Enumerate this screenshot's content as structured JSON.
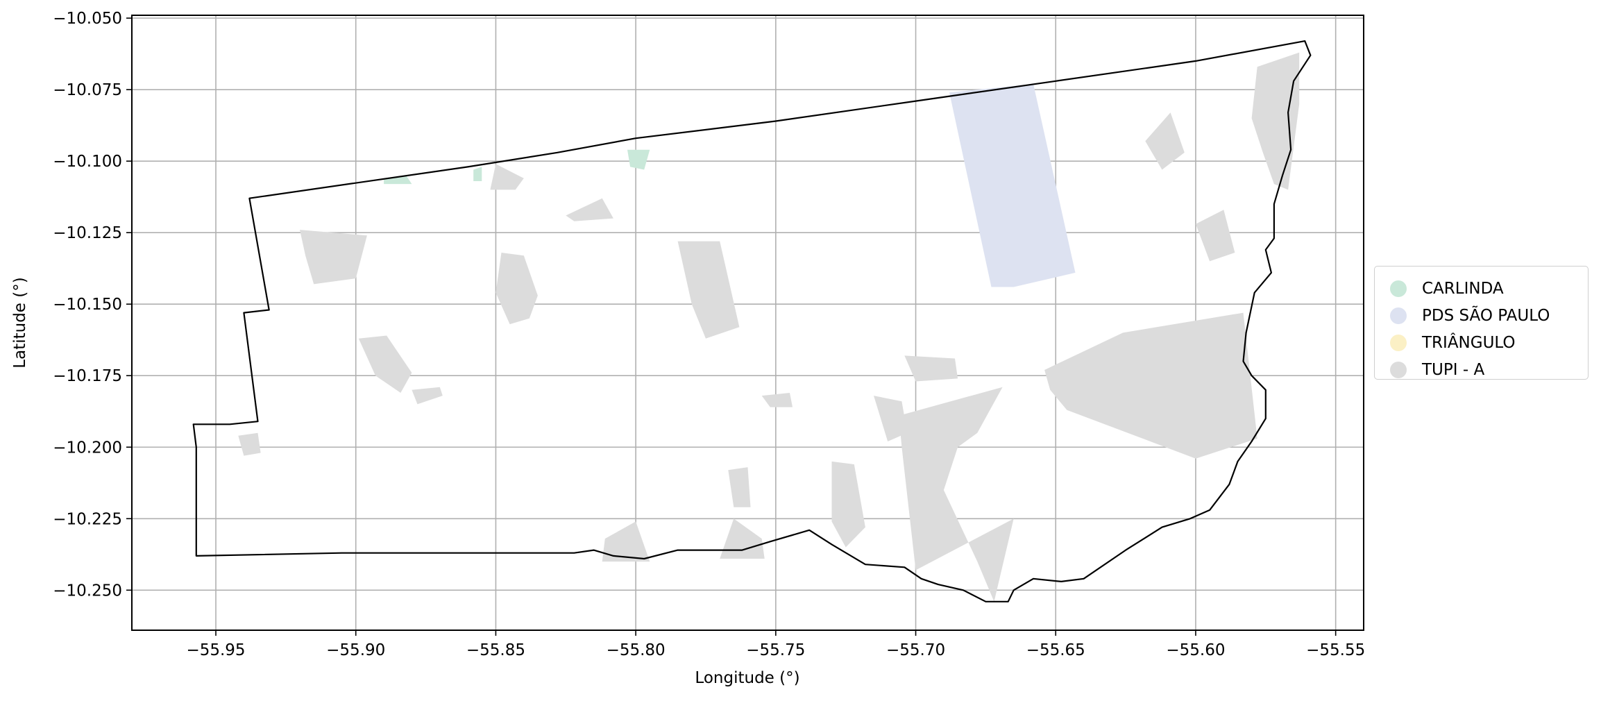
{
  "chart_data": {
    "type": "map",
    "xlabel": "Longitude (°)",
    "ylabel": "Latitude (°)",
    "xlim": [
      -55.98,
      -55.54
    ],
    "ylim": [
      -10.264,
      -10.049
    ],
    "grid": true,
    "legend_position": "right",
    "x_ticks": [
      -55.95,
      -55.9,
      -55.85,
      -55.8,
      -55.75,
      -55.7,
      -55.65,
      -55.6,
      -55.55
    ],
    "x_tick_labels": [
      "−55.95",
      "−55.90",
      "−55.85",
      "−55.80",
      "−55.75",
      "−55.70",
      "−55.65",
      "−55.60",
      "−55.55"
    ],
    "y_ticks": [
      -10.05,
      -10.075,
      -10.1,
      -10.125,
      -10.15,
      -10.175,
      -10.2,
      -10.225,
      -10.25
    ],
    "y_tick_labels": [
      "−10.050",
      "−10.075",
      "−10.100",
      "−10.125",
      "−10.150",
      "−10.175",
      "−10.200",
      "−10.225",
      "−10.250"
    ],
    "categories": [
      {
        "name": "CARLINDA",
        "color": "#c9e8d9"
      },
      {
        "name": "PDS SÃO PAULO",
        "color": "#dde2f1"
      },
      {
        "name": "TRIÂNGULO",
        "color": "#fbf0c5"
      },
      {
        "name": "TUPI - A",
        "color": "#dcdcdc"
      }
    ],
    "boundary": [
      [
        -55.938,
        -10.113
      ],
      [
        -55.86,
        -10.102
      ],
      [
        -55.828,
        -10.097
      ],
      [
        -55.8,
        -10.092
      ],
      [
        -55.75,
        -10.086
      ],
      [
        -55.7,
        -10.079
      ],
      [
        -55.65,
        -10.072
      ],
      [
        -55.6,
        -10.065
      ],
      [
        -55.561,
        -10.058
      ],
      [
        -55.559,
        -10.063
      ],
      [
        -55.565,
        -10.072
      ],
      [
        -55.567,
        -10.083
      ],
      [
        -55.566,
        -10.096
      ],
      [
        -55.569,
        -10.105
      ],
      [
        -55.572,
        -10.115
      ],
      [
        -55.572,
        -10.127
      ],
      [
        -55.575,
        -10.131
      ],
      [
        -55.573,
        -10.139
      ],
      [
        -55.579,
        -10.146
      ],
      [
        -55.582,
        -10.16
      ],
      [
        -55.583,
        -10.17
      ],
      [
        -55.58,
        -10.175
      ],
      [
        -55.575,
        -10.18
      ],
      [
        -55.575,
        -10.19
      ],
      [
        -55.58,
        -10.198
      ],
      [
        -55.585,
        -10.205
      ],
      [
        -55.588,
        -10.213
      ],
      [
        -55.595,
        -10.222
      ],
      [
        -55.602,
        -10.225
      ],
      [
        -55.612,
        -10.228
      ],
      [
        -55.625,
        -10.236
      ],
      [
        -55.64,
        -10.246
      ],
      [
        -55.648,
        -10.247
      ],
      [
        -55.658,
        -10.246
      ],
      [
        -55.665,
        -10.25
      ],
      [
        -55.667,
        -10.254
      ],
      [
        -55.675,
        -10.254
      ],
      [
        -55.683,
        -10.25
      ],
      [
        -55.692,
        -10.248
      ],
      [
        -55.698,
        -10.246
      ],
      [
        -55.704,
        -10.242
      ],
      [
        -55.718,
        -10.241
      ],
      [
        -55.73,
        -10.234
      ],
      [
        -55.738,
        -10.229
      ],
      [
        -55.752,
        -10.233
      ],
      [
        -55.762,
        -10.236
      ],
      [
        -55.785,
        -10.236
      ],
      [
        -55.797,
        -10.239
      ],
      [
        -55.808,
        -10.238
      ],
      [
        -55.815,
        -10.236
      ],
      [
        -55.822,
        -10.237
      ],
      [
        -55.905,
        -10.237
      ],
      [
        -55.957,
        -10.238
      ],
      [
        -55.957,
        -10.2
      ],
      [
        -55.958,
        -10.192
      ],
      [
        -55.945,
        -10.192
      ],
      [
        -55.935,
        -10.191
      ],
      [
        -55.94,
        -10.153
      ],
      [
        -55.931,
        -10.152
      ],
      [
        -55.938,
        -10.113
      ]
    ],
    "pds_sao_paulo_polygon": [
      [
        -55.688,
        -10.076
      ],
      [
        -55.658,
        -10.073
      ],
      [
        -55.643,
        -10.139
      ],
      [
        -55.665,
        -10.144
      ],
      [
        -55.673,
        -10.144
      ],
      [
        -55.688,
        -10.076
      ]
    ],
    "carlinda_polygons": [
      [
        [
          -55.89,
          -10.106
        ],
        [
          -55.882,
          -10.105
        ],
        [
          -55.88,
          -10.108
        ],
        [
          -55.89,
          -10.108
        ]
      ],
      [
        [
          -55.803,
          -10.096
        ],
        [
          -55.795,
          -10.096
        ],
        [
          -55.797,
          -10.103
        ],
        [
          -55.802,
          -10.102
        ]
      ],
      [
        [
          -55.858,
          -10.103
        ],
        [
          -55.855,
          -10.102
        ],
        [
          -55.855,
          -10.107
        ],
        [
          -55.858,
          -10.107
        ]
      ]
    ],
    "tupi_a_polygons": [
      [
        [
          -55.654,
          -10.173
        ],
        [
          -55.626,
          -10.16
        ],
        [
          -55.583,
          -10.153
        ],
        [
          -55.578,
          -10.197
        ],
        [
          -55.6,
          -10.204
        ],
        [
          -55.646,
          -10.187
        ],
        [
          -55.652,
          -10.18
        ]
      ],
      [
        [
          -55.706,
          -10.189
        ],
        [
          -55.669,
          -10.179
        ],
        [
          -55.678,
          -10.195
        ],
        [
          -55.685,
          -10.2
        ],
        [
          -55.69,
          -10.215
        ],
        [
          -55.678,
          -10.24
        ],
        [
          -55.672,
          -10.254
        ],
        [
          -55.665,
          -10.225
        ],
        [
          -55.7,
          -10.243
        ],
        [
          -55.705,
          -10.2
        ]
      ],
      [
        [
          -55.578,
          -10.067
        ],
        [
          -55.563,
          -10.062
        ],
        [
          -55.563,
          -10.08
        ],
        [
          -55.567,
          -10.11
        ],
        [
          -55.572,
          -10.108
        ],
        [
          -55.576,
          -10.097
        ],
        [
          -55.58,
          -10.085
        ]
      ],
      [
        [
          -55.785,
          -10.128
        ],
        [
          -55.77,
          -10.128
        ],
        [
          -55.763,
          -10.158
        ],
        [
          -55.775,
          -10.162
        ],
        [
          -55.78,
          -10.15
        ]
      ],
      [
        [
          -55.92,
          -10.124
        ],
        [
          -55.896,
          -10.126
        ],
        [
          -55.9,
          -10.141
        ],
        [
          -55.915,
          -10.143
        ],
        [
          -55.918,
          -10.133
        ]
      ],
      [
        [
          -55.848,
          -10.132
        ],
        [
          -55.84,
          -10.133
        ],
        [
          -55.835,
          -10.147
        ],
        [
          -55.838,
          -10.155
        ],
        [
          -55.845,
          -10.157
        ],
        [
          -55.85,
          -10.146
        ]
      ],
      [
        [
          -55.811,
          -10.232
        ],
        [
          -55.8,
          -10.226
        ],
        [
          -55.795,
          -10.24
        ],
        [
          -55.812,
          -10.24
        ]
      ],
      [
        [
          -55.765,
          -10.225
        ],
        [
          -55.755,
          -10.232
        ],
        [
          -55.754,
          -10.239
        ],
        [
          -55.77,
          -10.239
        ]
      ],
      [
        [
          -55.767,
          -10.208
        ],
        [
          -55.76,
          -10.207
        ],
        [
          -55.759,
          -10.221
        ],
        [
          -55.765,
          -10.221
        ]
      ],
      [
        [
          -55.73,
          -10.205
        ],
        [
          -55.722,
          -10.206
        ],
        [
          -55.718,
          -10.228
        ],
        [
          -55.725,
          -10.235
        ],
        [
          -55.73,
          -10.226
        ]
      ],
      [
        [
          -55.6,
          -10.122
        ],
        [
          -55.59,
          -10.117
        ],
        [
          -55.586,
          -10.132
        ],
        [
          -55.595,
          -10.135
        ]
      ],
      [
        [
          -55.618,
          -10.093
        ],
        [
          -55.609,
          -10.083
        ],
        [
          -55.604,
          -10.097
        ],
        [
          -55.612,
          -10.103
        ]
      ],
      [
        [
          -55.715,
          -10.182
        ],
        [
          -55.705,
          -10.184
        ],
        [
          -55.703,
          -10.195
        ],
        [
          -55.71,
          -10.198
        ]
      ],
      [
        [
          -55.704,
          -10.168
        ],
        [
          -55.686,
          -10.169
        ],
        [
          -55.685,
          -10.176
        ],
        [
          -55.7,
          -10.177
        ]
      ],
      [
        [
          -55.899,
          -10.162
        ],
        [
          -55.889,
          -10.161
        ],
        [
          -55.88,
          -10.174
        ],
        [
          -55.884,
          -10.181
        ],
        [
          -55.893,
          -10.175
        ]
      ],
      [
        [
          -55.942,
          -10.196
        ],
        [
          -55.935,
          -10.195
        ],
        [
          -55.934,
          -10.202
        ],
        [
          -55.94,
          -10.203
        ]
      ],
      [
        [
          -55.88,
          -10.18
        ],
        [
          -55.87,
          -10.179
        ],
        [
          -55.869,
          -10.182
        ],
        [
          -55.878,
          -10.185
        ]
      ],
      [
        [
          -55.85,
          -10.101
        ],
        [
          -55.84,
          -10.106
        ],
        [
          -55.843,
          -10.11
        ],
        [
          -55.852,
          -10.11
        ]
      ],
      [
        [
          -55.825,
          -10.119
        ],
        [
          -55.812,
          -10.113
        ],
        [
          -55.808,
          -10.12
        ],
        [
          -55.822,
          -10.121
        ]
      ],
      [
        [
          -55.755,
          -10.182
        ],
        [
          -55.745,
          -10.181
        ],
        [
          -55.744,
          -10.186
        ],
        [
          -55.752,
          -10.186
        ]
      ]
    ]
  }
}
